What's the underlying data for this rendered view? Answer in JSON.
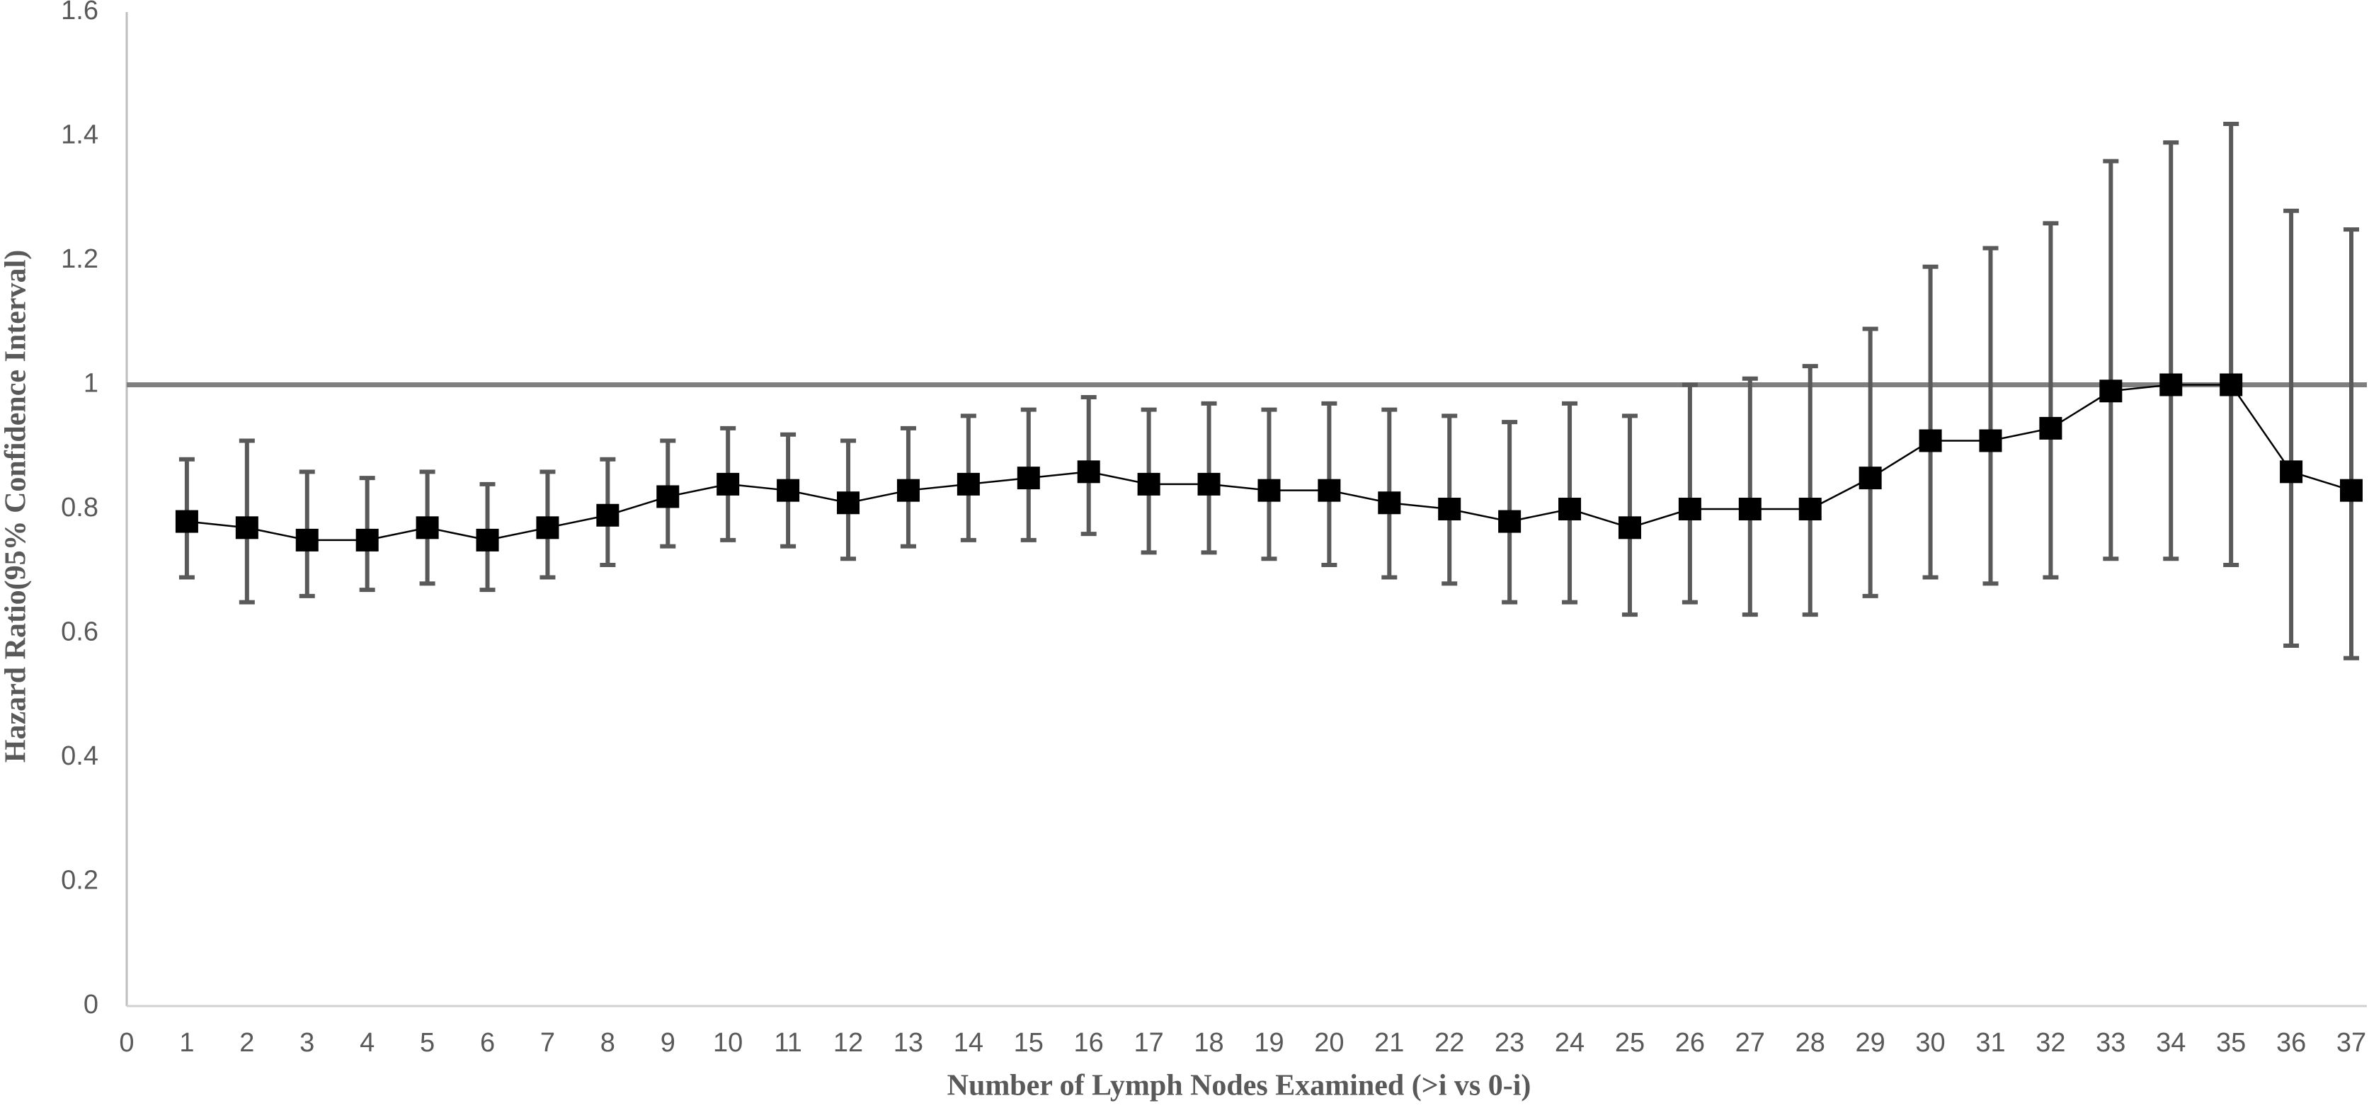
{
  "chart_data": {
    "type": "line",
    "xlabel": "Number of Lymph Nodes Examined (>i vs 0-i)",
    "ylabel": "Hazard Ratio(95% Confidence Interval)",
    "x": [
      1,
      2,
      3,
      4,
      5,
      6,
      7,
      8,
      9,
      10,
      11,
      12,
      13,
      14,
      15,
      16,
      17,
      18,
      19,
      20,
      21,
      22,
      23,
      24,
      25,
      26,
      27,
      28,
      29,
      30,
      31,
      32,
      33,
      34,
      35,
      36,
      37
    ],
    "values": [
      0.78,
      0.77,
      0.75,
      0.75,
      0.77,
      0.75,
      0.77,
      0.79,
      0.82,
      0.84,
      0.83,
      0.81,
      0.83,
      0.84,
      0.85,
      0.86,
      0.84,
      0.84,
      0.83,
      0.83,
      0.81,
      0.8,
      0.78,
      0.8,
      0.77,
      0.8,
      0.8,
      0.8,
      0.85,
      0.91,
      0.91,
      0.93,
      0.99,
      1.0,
      1.0,
      0.86,
      0.83
    ],
    "lower": [
      0.69,
      0.65,
      0.66,
      0.67,
      0.68,
      0.67,
      0.69,
      0.71,
      0.74,
      0.75,
      0.74,
      0.72,
      0.74,
      0.75,
      0.75,
      0.76,
      0.73,
      0.73,
      0.72,
      0.71,
      0.69,
      0.68,
      0.65,
      0.65,
      0.63,
      0.65,
      0.63,
      0.63,
      0.66,
      0.69,
      0.68,
      0.69,
      0.72,
      0.72,
      0.71,
      0.58,
      0.56
    ],
    "upper": [
      0.88,
      0.91,
      0.86,
      0.85,
      0.86,
      0.84,
      0.86,
      0.88,
      0.91,
      0.93,
      0.92,
      0.91,
      0.93,
      0.95,
      0.96,
      0.98,
      0.96,
      0.97,
      0.96,
      0.97,
      0.96,
      0.95,
      0.94,
      0.97,
      0.95,
      1.0,
      1.01,
      1.03,
      1.09,
      1.19,
      1.22,
      1.26,
      1.36,
      1.39,
      1.42,
      1.28,
      1.25
    ],
    "color": "#000000",
    "error_color": "#595959",
    "reference_line": 1,
    "reference_color": "#7f7f7f",
    "xlim": [
      0,
      37
    ],
    "xticks": [
      0,
      1,
      2,
      3,
      4,
      5,
      6,
      7,
      8,
      9,
      10,
      11,
      12,
      13,
      14,
      15,
      16,
      17,
      18,
      19,
      20,
      21,
      22,
      23,
      24,
      25,
      26,
      27,
      28,
      29,
      30,
      31,
      32,
      33,
      34,
      35,
      36,
      37
    ],
    "ylim": [
      0,
      1.6
    ],
    "yticks": [
      0,
      0.2,
      0.4,
      0.6,
      0.8,
      1,
      1.2,
      1.4,
      1.6
    ]
  }
}
